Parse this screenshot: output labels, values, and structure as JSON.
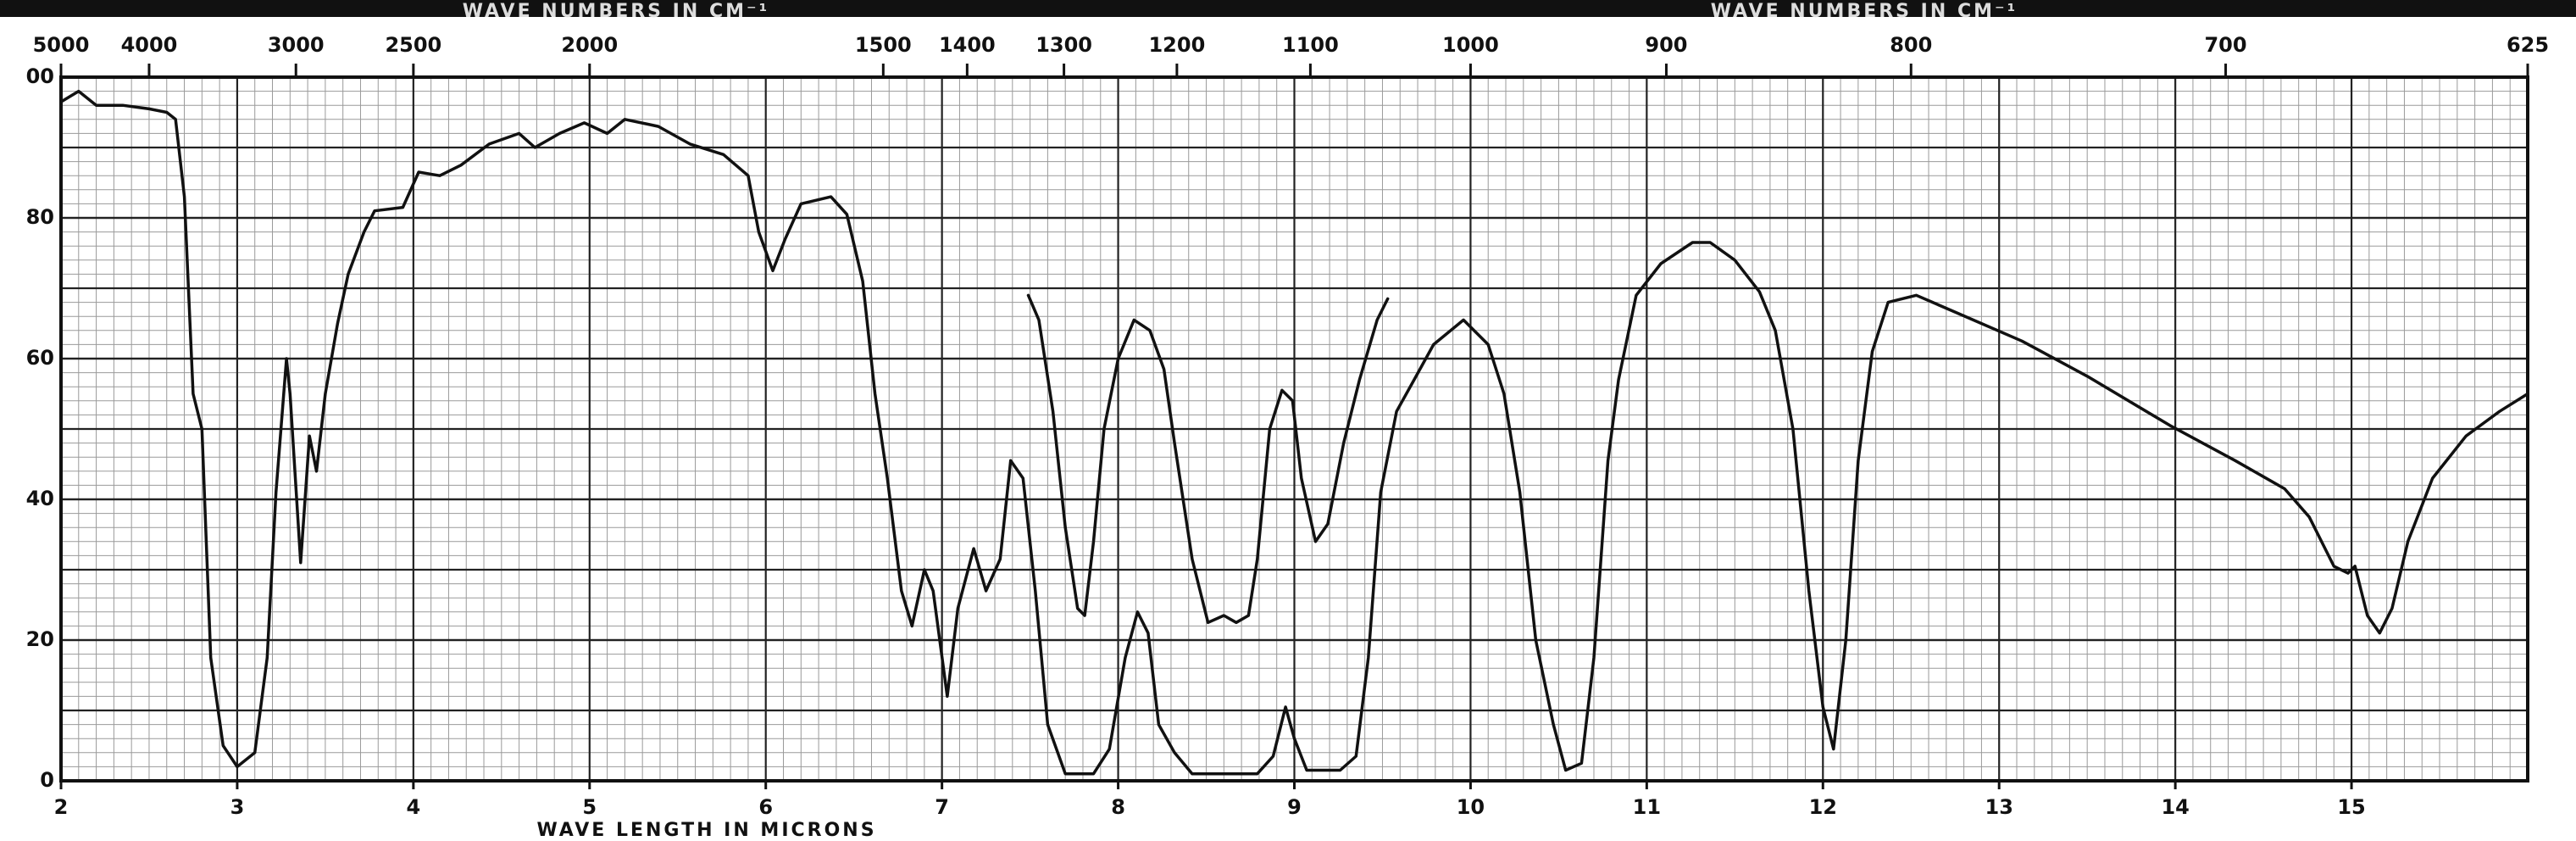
{
  "chart_data": {
    "type": "line",
    "xlabel": "WAVE LENGTH IN MICRONS",
    "x2label": "WAVE NUMBERS IN CM⁻¹",
    "xlim": [
      2,
      16
    ],
    "xticks": [
      2,
      3,
      4,
      5,
      6,
      7,
      8,
      9,
      10,
      11,
      12,
      13,
      14,
      15
    ],
    "x2ticks": [
      5000,
      4000,
      3000,
      2500,
      2000,
      1500,
      1400,
      1300,
      1200,
      1100,
      1000,
      900,
      800,
      700,
      625
    ],
    "x2_scale": "reciprocal",
    "ylim": [
      0,
      100
    ],
    "yticks": [
      0,
      20,
      40,
      60,
      80,
      {
        "value": 100,
        "label": "00"
      }
    ],
    "grid": true,
    "series": [
      {
        "color": "#111111",
        "x": [
          2.0,
          2.1,
          2.2,
          2.35,
          2.5,
          2.6,
          2.65,
          2.7,
          2.75,
          2.8,
          2.85,
          2.92,
          3.0,
          3.1,
          3.17,
          3.22,
          3.28,
          3.3,
          3.36,
          3.41,
          3.45,
          3.5,
          3.57,
          3.63,
          3.72,
          3.78,
          3.94,
          4.03,
          4.15,
          4.27,
          4.43,
          4.6,
          4.69,
          4.83,
          4.97,
          5.1,
          5.2,
          5.39,
          5.57,
          5.76,
          5.9,
          5.96,
          6.04,
          6.11,
          6.2,
          6.37,
          6.46,
          6.55,
          6.62,
          6.69,
          6.77,
          6.83,
          6.9,
          6.95,
          7.03,
          7.09,
          7.18,
          7.25,
          7.33,
          7.39,
          7.46,
          7.53,
          7.6,
          7.7,
          7.86,
          7.95,
          8.04,
          8.11,
          8.17,
          8.23,
          8.32,
          8.42,
          8.79,
          8.88,
          8.95,
          9.0,
          9.07,
          9.26,
          9.35,
          9.42,
          9.49,
          9.58,
          9.68,
          9.79,
          9.96,
          10.1,
          10.19,
          10.28,
          10.37,
          10.47,
          10.54,
          10.63,
          10.7,
          10.78,
          10.84,
          10.94,
          11.08,
          11.26,
          11.36,
          11.5,
          11.64,
          11.73,
          11.83,
          11.92,
          12.0,
          12.06,
          12.13,
          12.2,
          12.28,
          12.37,
          12.53,
          12.76,
          13.13,
          13.5,
          13.97,
          14.34,
          14.62,
          14.76,
          14.9,
          14.98,
          15.02,
          15.09,
          15.16,
          15.23,
          15.32,
          15.46,
          15.65,
          15.84,
          16.0
        ],
        "values": [
          96.5,
          98,
          96,
          96,
          95.5,
          95,
          94,
          83,
          55,
          50,
          17.5,
          5,
          2,
          4,
          17.5,
          41,
          60,
          55,
          31,
          49,
          44,
          55,
          65,
          72,
          78,
          81,
          81.5,
          86.5,
          86,
          87.5,
          90.5,
          92,
          90,
          92,
          93.5,
          92,
          94,
          93,
          90.5,
          89,
          86,
          78,
          72.5,
          77,
          82,
          83,
          80.5,
          71,
          55,
          43,
          27,
          22,
          30,
          27,
          12,
          24.5,
          33,
          27,
          31.5,
          45.5,
          43,
          27,
          8,
          1,
          1,
          4.5,
          17.5,
          24,
          21,
          8,
          4,
          1,
          1,
          3.5,
          10.5,
          6,
          1.5,
          1.5,
          3.5,
          17.5,
          41,
          52.5,
          57,
          62,
          65.5,
          62,
          55,
          41,
          20,
          8,
          1.5,
          2.5,
          17.5,
          45.5,
          57,
          69,
          73.5,
          76.5,
          76.5,
          74,
          69.5,
          64,
          50,
          27,
          10.5,
          4.5,
          20,
          45.5,
          61,
          68,
          69,
          66.5,
          62.5,
          57.5,
          50.5,
          45.5,
          41.5,
          37.5,
          30.5,
          29.5,
          30.5,
          23.5,
          21,
          24.5,
          34,
          43,
          49,
          52.5,
          55
        ]
      },
      {
        "color": "#111111",
        "x": [
          7.49,
          7.55,
          7.63,
          7.7,
          7.77,
          7.81,
          7.86,
          7.92,
          8.0,
          8.09,
          8.18,
          8.26,
          8.32,
          8.42,
          8.51,
          8.6,
          8.67,
          8.74,
          8.79,
          8.86,
          8.93,
          8.99,
          9.04,
          9.12,
          9.19,
          9.28,
          9.37,
          9.47,
          9.53
        ],
        "values": [
          69,
          65.5,
          52.5,
          36,
          24.5,
          23.5,
          34,
          50,
          60,
          65.5,
          64,
          58.5,
          48,
          31.5,
          22.5,
          23.5,
          22.5,
          23.5,
          31.5,
          50,
          55.5,
          54,
          43,
          34,
          36.5,
          48,
          57,
          65.5,
          68.5
        ]
      }
    ]
  }
}
